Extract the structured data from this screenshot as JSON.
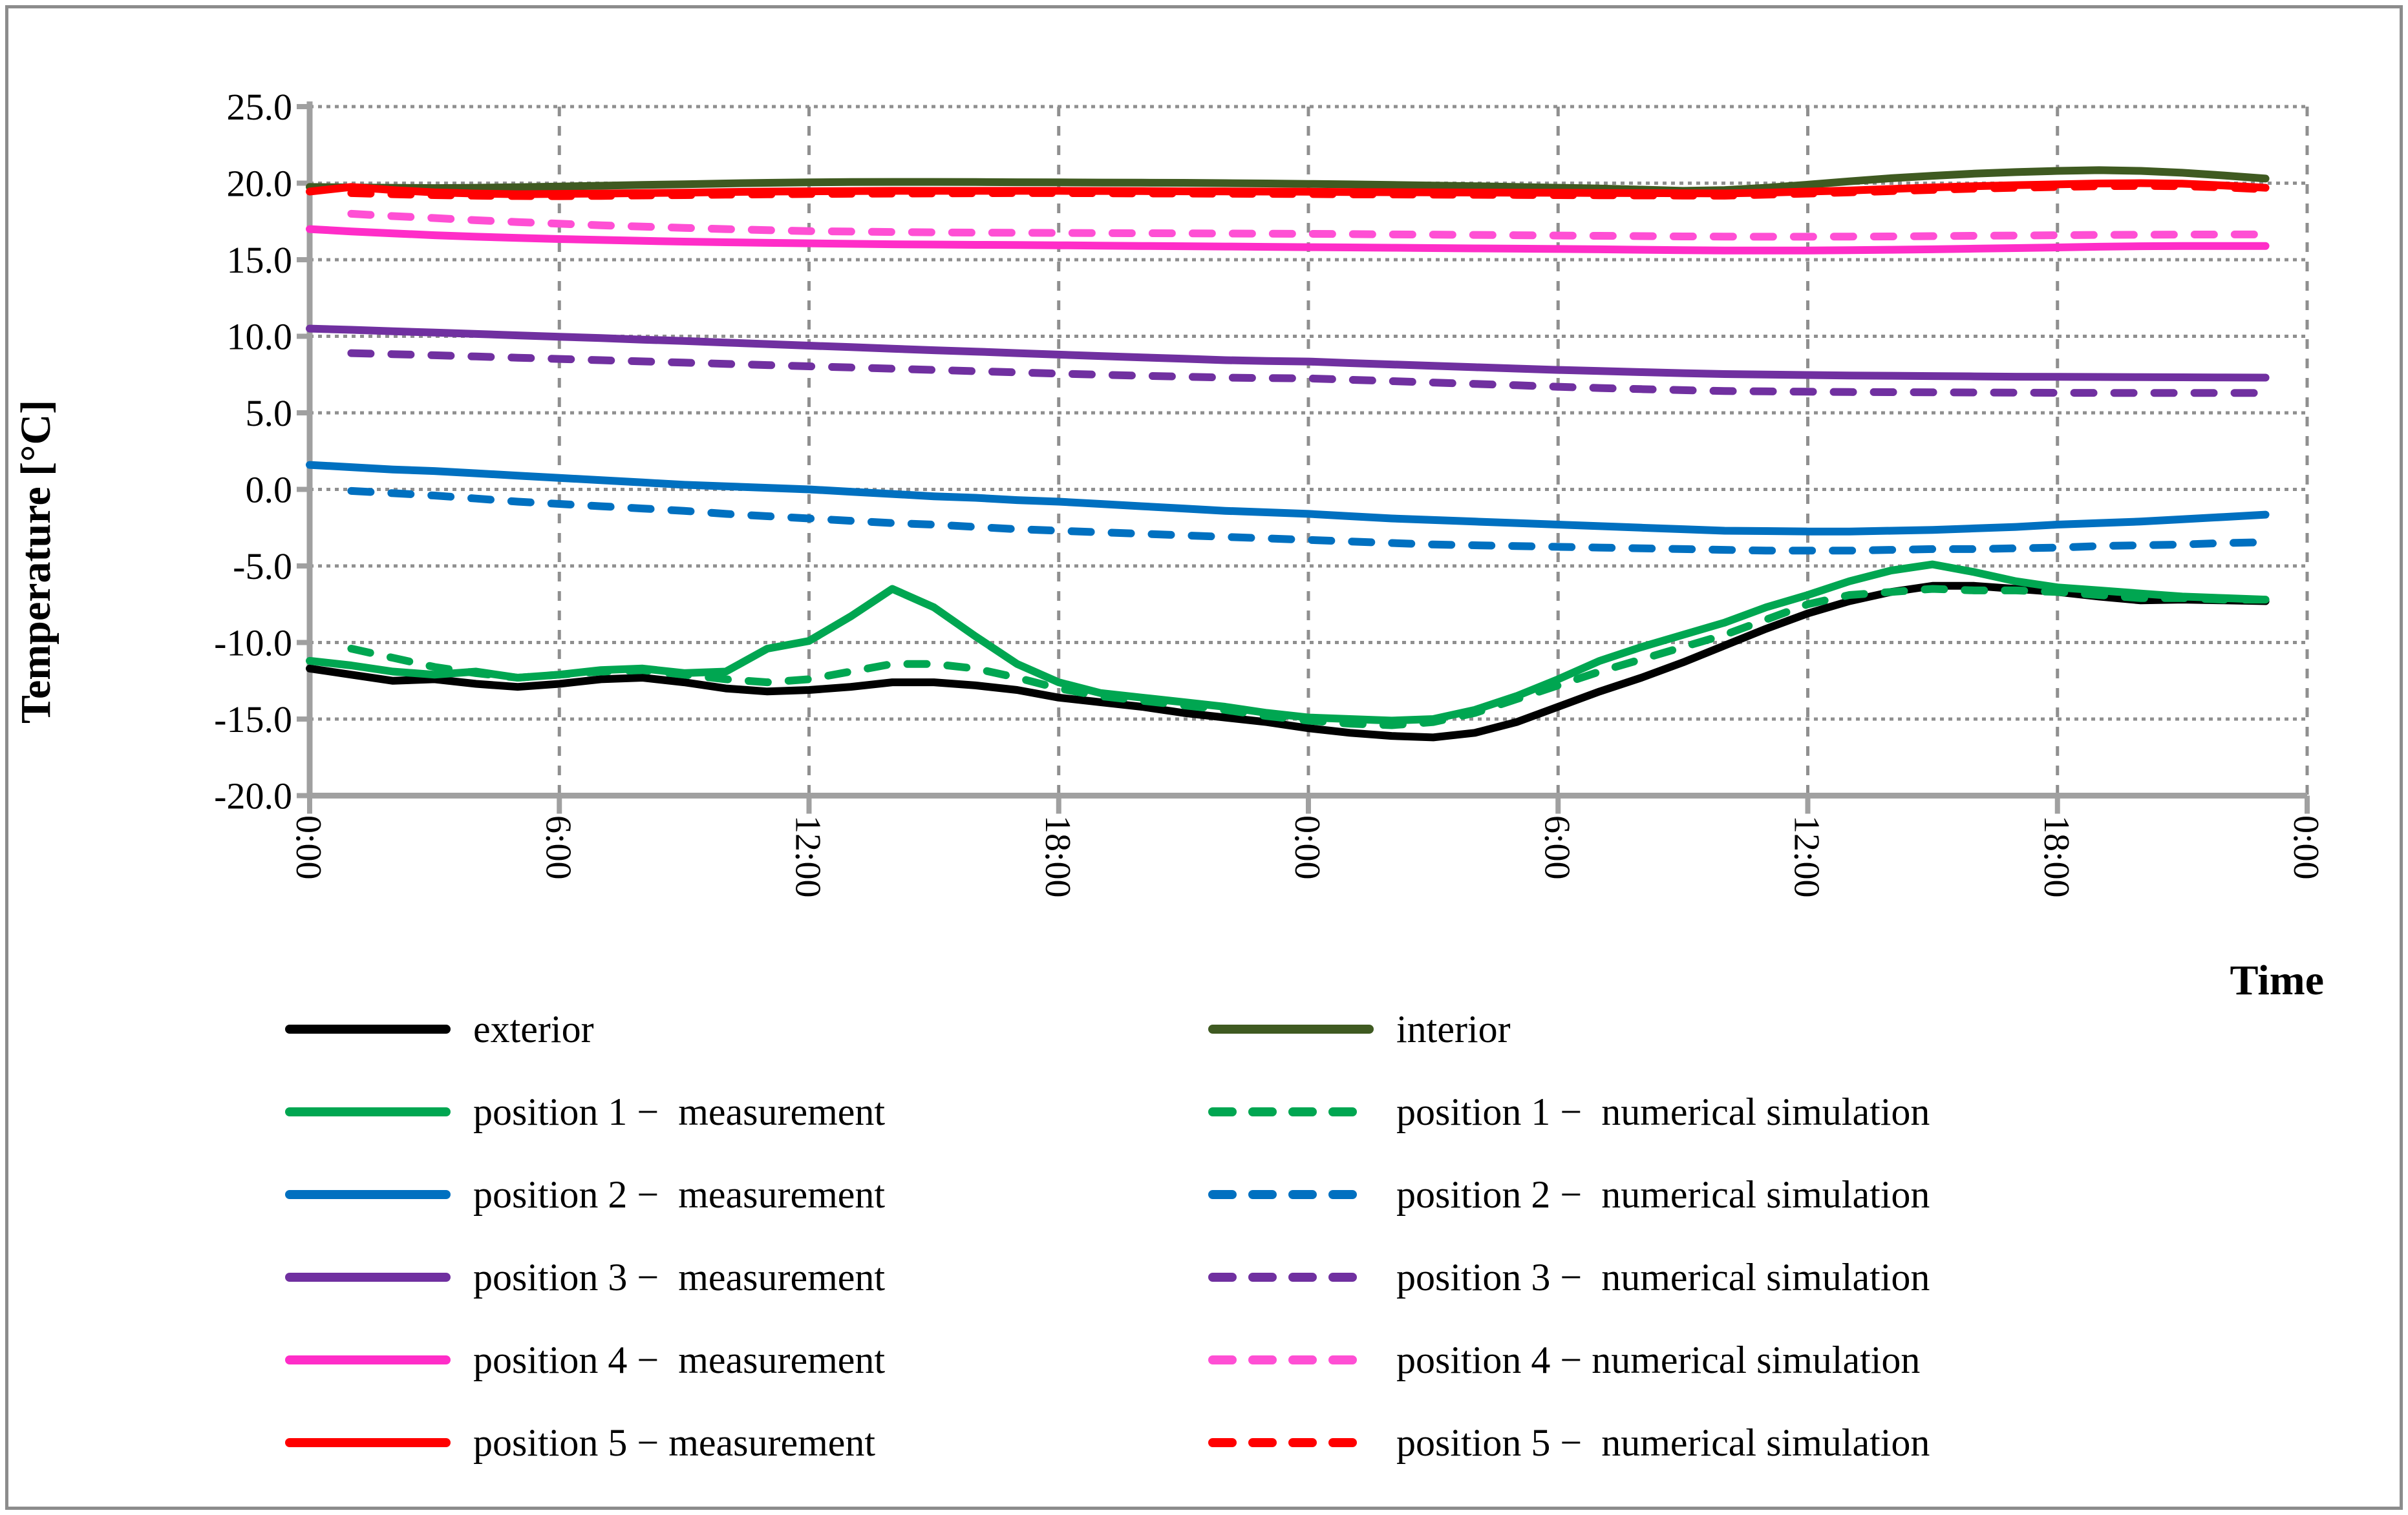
{
  "figure": {
    "border_color": "#8c8c8c",
    "background": "#ffffff",
    "axis_color": "#a0a0a0",
    "grid_color": "#8f8f8f"
  },
  "chart_data": {
    "type": "line",
    "title": "",
    "xlabel": "Time",
    "ylabel": "Temperature [°C]",
    "ylim": [
      -20,
      25
    ],
    "ytick_step": 5,
    "ytick_labels": [
      "25.0",
      "20.0",
      "15.0",
      "10.0",
      "5.0",
      "0.0",
      "-5.0",
      "-10.0",
      "-15.0",
      "-20.0"
    ],
    "ytick_values": [
      25,
      20,
      15,
      10,
      5,
      0,
      -5,
      -10,
      -15,
      -20
    ],
    "x_hours_total": 48,
    "xtick_interval_hours": 6,
    "xtick_values": [
      0,
      6,
      12,
      18,
      24,
      30,
      36,
      42,
      48
    ],
    "xtick_labels": [
      "0:00",
      "6:00",
      "12:00",
      "18:00",
      "0:00",
      "6:00",
      "12:00",
      "18:00",
      "0:00"
    ],
    "grid": {
      "horizontal": "dotted",
      "vertical": "dashed",
      "grid_on": true
    },
    "legend_position": "bottom",
    "draw_order": [
      0,
      1,
      2,
      3,
      4,
      5,
      6,
      7,
      8,
      9,
      11,
      10
    ],
    "series": [
      {
        "name": "exterior",
        "color": "#000000",
        "dash": "solid",
        "start_hour": 0,
        "values": [
          -11.7,
          -12.1,
          -12.5,
          -12.4,
          -12.7,
          -12.9,
          -12.7,
          -12.4,
          -12.3,
          -12.6,
          -13.0,
          -13.2,
          -13.1,
          -12.9,
          -12.6,
          -12.6,
          -12.8,
          -13.1,
          -13.6,
          -13.9,
          -14.2,
          -14.6,
          -14.9,
          -15.2,
          -15.6,
          -15.9,
          -16.1,
          -16.2,
          -15.9,
          -15.2,
          -14.2,
          -13.2,
          -12.3,
          -11.3,
          -10.2,
          -9.1,
          -8.1,
          -7.3,
          -6.7,
          -6.3,
          -6.3,
          -6.5,
          -6.7,
          -7.0,
          -7.25,
          -7.2,
          -7.25,
          -7.3
        ]
      },
      {
        "name": "interior",
        "color": "#3f5a21",
        "dash": "solid",
        "start_hour": 0,
        "values": [
          19.75,
          19.72,
          19.7,
          19.68,
          19.7,
          19.74,
          19.78,
          19.83,
          19.88,
          19.93,
          19.98,
          20.02,
          20.05,
          20.07,
          20.08,
          20.08,
          20.07,
          20.06,
          20.05,
          20.04,
          20.03,
          20.02,
          20.0,
          19.98,
          19.95,
          19.92,
          19.88,
          19.84,
          19.8,
          19.75,
          19.7,
          19.65,
          19.58,
          19.5,
          19.55,
          19.7,
          19.9,
          20.12,
          20.32,
          20.48,
          20.62,
          20.72,
          20.8,
          20.85,
          20.8,
          20.68,
          20.5,
          20.3
        ]
      },
      {
        "name": "position 1 −  measurement",
        "color": "#00a651",
        "dash": "solid",
        "start_hour": 0,
        "values": [
          -11.2,
          -11.5,
          -11.9,
          -12.1,
          -11.9,
          -12.3,
          -12.1,
          -11.8,
          -11.7,
          -12.0,
          -11.9,
          -10.4,
          -9.9,
          -8.3,
          -6.5,
          -7.7,
          -9.6,
          -11.4,
          -12.6,
          -13.3,
          -13.6,
          -13.9,
          -14.2,
          -14.6,
          -14.9,
          -15.0,
          -15.1,
          -15.0,
          -14.4,
          -13.5,
          -12.4,
          -11.2,
          -10.3,
          -9.5,
          -8.7,
          -7.7,
          -6.9,
          -6.0,
          -5.3,
          -4.9,
          -5.4,
          -6.0,
          -6.4,
          -6.6,
          -6.8,
          -7.0,
          -7.1,
          -7.2
        ]
      },
      {
        "name": "position 1 −  numerical simulation",
        "color": "#00a651",
        "dash": "dashed",
        "start_hour": 1,
        "values": [
          -10.4,
          -11.0,
          -11.6,
          -12.0,
          -12.3,
          -12.1,
          -11.9,
          -11.8,
          -12.1,
          -12.4,
          -12.6,
          -12.4,
          -11.9,
          -11.4,
          -11.4,
          -11.7,
          -12.3,
          -13.0,
          -13.5,
          -13.8,
          -14.1,
          -14.4,
          -14.8,
          -15.1,
          -15.3,
          -15.4,
          -15.2,
          -14.6,
          -13.7,
          -12.8,
          -11.9,
          -11.1,
          -10.3,
          -9.5,
          -8.5,
          -7.5,
          -6.9,
          -6.7,
          -6.5,
          -6.6,
          -6.6,
          -6.7,
          -6.9,
          -7.1,
          -7.1,
          -7.2,
          -7.2
        ]
      },
      {
        "name": "position 2 −  measurement",
        "color": "#0070c0",
        "dash": "solid",
        "start_hour": 0,
        "values": [
          1.6,
          1.45,
          1.3,
          1.2,
          1.05,
          0.9,
          0.75,
          0.6,
          0.45,
          0.3,
          0.2,
          0.1,
          0.0,
          -0.15,
          -0.3,
          -0.45,
          -0.55,
          -0.7,
          -0.8,
          -0.95,
          -1.1,
          -1.25,
          -1.4,
          -1.5,
          -1.6,
          -1.75,
          -1.9,
          -2.0,
          -2.1,
          -2.2,
          -2.3,
          -2.4,
          -2.5,
          -2.6,
          -2.7,
          -2.72,
          -2.75,
          -2.75,
          -2.7,
          -2.65,
          -2.55,
          -2.45,
          -2.3,
          -2.2,
          -2.1,
          -1.95,
          -1.8,
          -1.65
        ]
      },
      {
        "name": "position 2 −  numerical simulation",
        "color": "#0070c0",
        "dash": "dashed",
        "start_hour": 1,
        "values": [
          -0.1,
          -0.25,
          -0.4,
          -0.6,
          -0.8,
          -0.95,
          -1.1,
          -1.25,
          -1.4,
          -1.6,
          -1.75,
          -1.9,
          -2.05,
          -2.2,
          -2.3,
          -2.45,
          -2.6,
          -2.7,
          -2.8,
          -2.9,
          -3.0,
          -3.1,
          -3.2,
          -3.3,
          -3.4,
          -3.5,
          -3.6,
          -3.65,
          -3.7,
          -3.75,
          -3.8,
          -3.85,
          -3.9,
          -3.95,
          -4.0,
          -4.0,
          -4.0,
          -3.95,
          -3.9,
          -3.9,
          -3.85,
          -3.8,
          -3.7,
          -3.65,
          -3.6,
          -3.5,
          -3.45
        ]
      },
      {
        "name": "position 3 −  measurement",
        "color": "#7030a0",
        "dash": "solid",
        "start_hour": 0,
        "values": [
          10.5,
          10.42,
          10.33,
          10.24,
          10.15,
          10.06,
          9.97,
          9.88,
          9.78,
          9.69,
          9.59,
          9.49,
          9.39,
          9.29,
          9.19,
          9.09,
          9.0,
          8.9,
          8.8,
          8.71,
          8.62,
          8.53,
          8.44,
          8.39,
          8.35,
          8.25,
          8.16,
          8.07,
          7.98,
          7.89,
          7.8,
          7.73,
          7.66,
          7.59,
          7.53,
          7.5,
          7.47,
          7.44,
          7.42,
          7.4,
          7.38,
          7.36,
          7.35,
          7.34,
          7.33,
          7.32,
          7.31,
          7.3
        ]
      },
      {
        "name": "position 3 −  numerical simulation",
        "color": "#7030a0",
        "dash": "dashed",
        "start_hour": 1,
        "values": [
          8.9,
          8.83,
          8.76,
          8.68,
          8.6,
          8.52,
          8.44,
          8.36,
          8.28,
          8.2,
          8.12,
          8.04,
          7.96,
          7.88,
          7.8,
          7.72,
          7.64,
          7.56,
          7.49,
          7.42,
          7.36,
          7.3,
          7.27,
          7.25,
          7.16,
          7.07,
          6.98,
          6.89,
          6.8,
          6.7,
          6.62,
          6.55,
          6.48,
          6.42,
          6.4,
          6.38,
          6.36,
          6.35,
          6.34,
          6.33,
          6.32,
          6.31,
          6.3,
          6.3,
          6.3,
          6.3,
          6.3
        ]
      },
      {
        "name": "position 4 −  measurement",
        "color": "#ff2dc8",
        "dash": "solid",
        "start_hour": 0,
        "values": [
          17.0,
          16.85,
          16.72,
          16.6,
          16.5,
          16.42,
          16.35,
          16.29,
          16.23,
          16.18,
          16.14,
          16.1,
          16.07,
          16.04,
          16.01,
          15.99,
          15.97,
          15.96,
          15.94,
          15.92,
          15.9,
          15.88,
          15.86,
          15.84,
          15.82,
          15.8,
          15.78,
          15.76,
          15.74,
          15.72,
          15.7,
          15.68,
          15.65,
          15.62,
          15.6,
          15.6,
          15.6,
          15.62,
          15.65,
          15.68,
          15.72,
          15.76,
          15.8,
          15.85,
          15.88,
          15.9,
          15.9,
          15.9
        ]
      },
      {
        "name": "position 4 − numerical simulation",
        "color": "#ff4fd4",
        "dash": "dashed",
        "start_hour": 1,
        "values": [
          18.0,
          17.85,
          17.72,
          17.58,
          17.46,
          17.35,
          17.25,
          17.16,
          17.08,
          17.0,
          16.93,
          16.87,
          16.84,
          16.81,
          16.79,
          16.77,
          16.76,
          16.75,
          16.74,
          16.73,
          16.72,
          16.71,
          16.7,
          16.69,
          16.67,
          16.65,
          16.64,
          16.62,
          16.6,
          16.58,
          16.56,
          16.54,
          16.52,
          16.51,
          16.5,
          16.5,
          16.51,
          16.52,
          16.54,
          16.56,
          16.58,
          16.6,
          16.62,
          16.63,
          16.64,
          16.65,
          16.65
        ]
      },
      {
        "name": "position 5 − measurement",
        "color": "#ff0000",
        "dash": "solid",
        "start_hour": 0,
        "values": [
          19.45,
          19.75,
          19.55,
          19.4,
          19.32,
          19.28,
          19.3,
          19.32,
          19.35,
          19.38,
          19.42,
          19.45,
          19.47,
          19.48,
          19.5,
          19.5,
          19.5,
          19.5,
          19.5,
          19.49,
          19.48,
          19.47,
          19.46,
          19.45,
          19.44,
          19.42,
          19.41,
          19.4,
          19.39,
          19.38,
          19.37,
          19.36,
          19.35,
          19.34,
          19.33,
          19.38,
          19.45,
          19.52,
          19.62,
          19.72,
          19.8,
          19.87,
          19.92,
          19.98,
          20.0,
          19.97,
          19.85,
          19.7
        ]
      },
      {
        "name": "position 5 −  numerical simulation",
        "color": "#ff0000",
        "dash": "dashed",
        "start_hour": 1,
        "values": [
          19.35,
          19.28,
          19.22,
          19.18,
          19.16,
          19.15,
          19.17,
          19.2,
          19.22,
          19.25,
          19.27,
          19.29,
          19.31,
          19.32,
          19.33,
          19.34,
          19.35,
          19.35,
          19.34,
          19.33,
          19.32,
          19.31,
          19.3,
          19.29,
          19.27,
          19.26,
          19.25,
          19.24,
          19.23,
          19.22,
          19.21,
          19.2,
          19.19,
          19.18,
          19.25,
          19.32,
          19.4,
          19.48,
          19.56,
          19.64,
          19.7,
          19.75,
          19.8,
          19.82,
          19.8,
          19.72,
          19.6
        ]
      }
    ],
    "legend": {
      "left_column_series": [
        0,
        2,
        4,
        6,
        8,
        10
      ],
      "right_column_series": [
        1,
        3,
        5,
        7,
        9,
        11
      ]
    }
  }
}
